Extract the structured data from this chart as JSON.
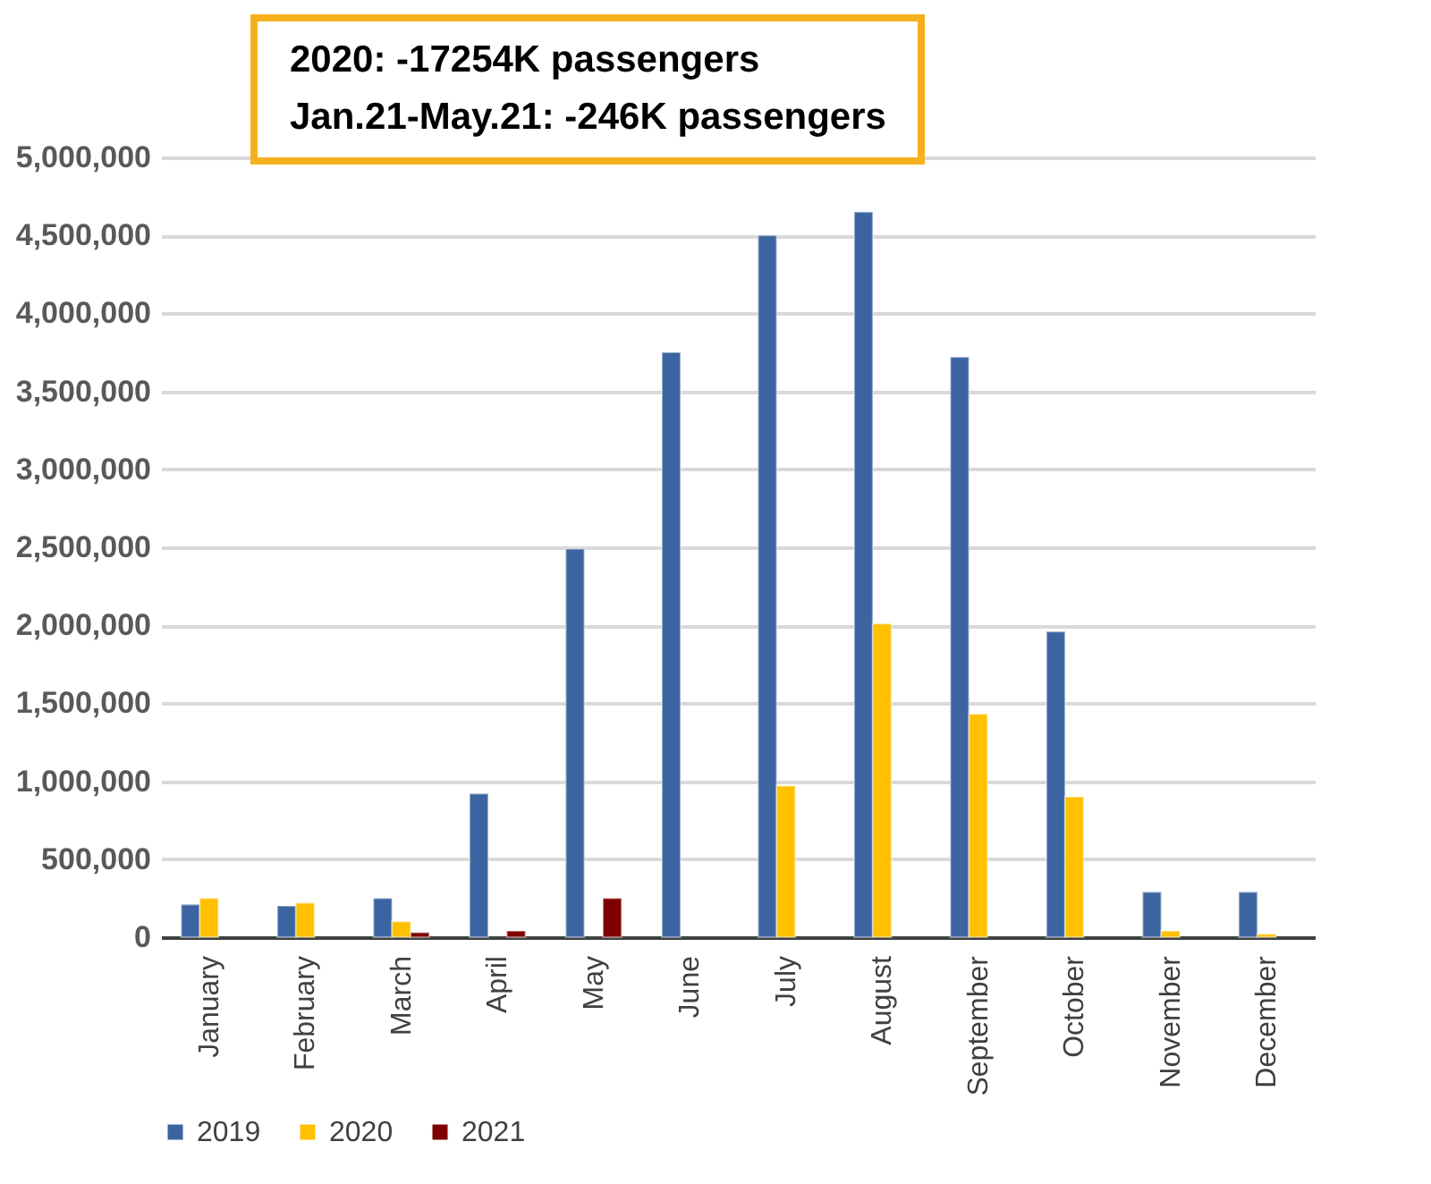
{
  "chart_data": {
    "type": "bar",
    "annotations": [
      "2020: -17254K passengers",
      "Jan.21-May.21: -246K passengers"
    ],
    "categories": [
      "January",
      "February",
      "March",
      "April",
      "May",
      "June",
      "July",
      "August",
      "September",
      "October",
      "November",
      "December"
    ],
    "series": [
      {
        "name": "2019",
        "color": "#3c64a0",
        "values": [
          210000,
          200000,
          250000,
          920000,
          2490000,
          3750000,
          4500000,
          4650000,
          3720000,
          1960000,
          290000,
          290000
        ]
      },
      {
        "name": "2020",
        "color": "#ffc000",
        "values": [
          250000,
          220000,
          100000,
          null,
          null,
          null,
          970000,
          2010000,
          1430000,
          900000,
          40000,
          20000
        ]
      },
      {
        "name": "2021",
        "color": "#7f0000",
        "values": [
          null,
          null,
          30000,
          40000,
          250000,
          null,
          null,
          null,
          null,
          null,
          null,
          null
        ]
      }
    ],
    "ylim": [
      0,
      5000000
    ],
    "yticks": [
      0,
      {
        "value": 500000,
        "label": "500,000"
      },
      {
        "value": 1000000,
        "label": "1,000,000"
      },
      {
        "value": 1500000,
        "label": "1,500,000"
      },
      {
        "value": 2000000,
        "label": "2,000,000"
      },
      {
        "value": 2500000,
        "label": "2,500,000"
      },
      {
        "value": 3000000,
        "label": "3,000,000"
      },
      {
        "value": 3500000,
        "label": "3,500,000"
      },
      {
        "value": 4000000,
        "label": "4,000,000"
      },
      {
        "value": 4500000,
        "label": "4,500,000"
      },
      {
        "value": 5000000,
        "label": "5,000,000"
      }
    ],
    "grid": "y",
    "legend": "bottom"
  }
}
